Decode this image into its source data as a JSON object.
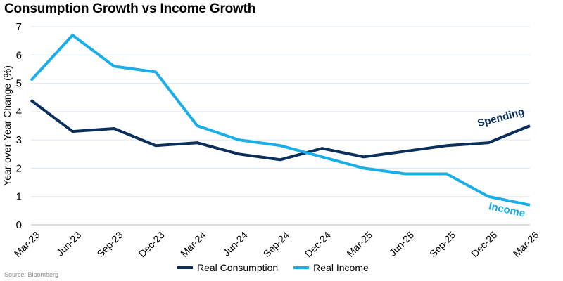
{
  "title": "Consumption Growth vs Income Growth",
  "source": "Source: Bloomberg",
  "chart_data": {
    "type": "line",
    "title": "Consumption Growth vs Income Growth",
    "xlabel": "",
    "ylabel": "Year-over-Year Change (%)",
    "ylim": [
      0,
      7
    ],
    "yticks": [
      "0",
      "1",
      "2",
      "3",
      "4",
      "5",
      "6",
      "7"
    ],
    "categories": [
      "Mar-23",
      "Jun-23",
      "Sep-23",
      "Dec-23",
      "Mar-24",
      "Jun-24",
      "Sep-24",
      "Dec-24",
      "Mar-25",
      "Jun-25",
      "Sep-25",
      "Dec-25",
      "Mar-26"
    ],
    "grid": "horizontal",
    "legend_position": "bottom",
    "series": [
      {
        "name": "Real Consumption",
        "color": "#0b2f5a",
        "values": [
          4.4,
          3.3,
          3.4,
          2.8,
          2.9,
          2.5,
          2.3,
          2.7,
          2.4,
          2.6,
          2.8,
          2.9,
          3.5
        ]
      },
      {
        "name": "Real Income",
        "color": "#19aee8",
        "values": [
          5.1,
          6.7,
          5.6,
          5.4,
          3.5,
          3.0,
          2.8,
          2.4,
          2.0,
          1.8,
          1.8,
          1.0,
          0.7
        ]
      }
    ],
    "annotations": [
      {
        "text": "Spending",
        "series": 0,
        "color": "#0b2f5a"
      },
      {
        "text": "Income",
        "series": 1,
        "color": "#19aee8"
      }
    ]
  }
}
